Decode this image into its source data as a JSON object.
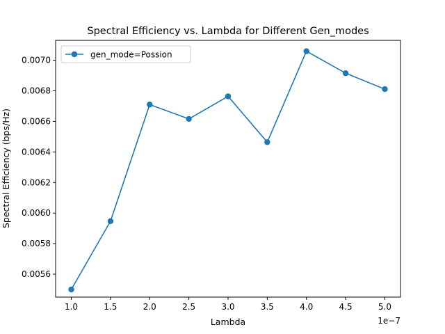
{
  "chart_data": {
    "type": "line",
    "title": "Spectral Efficiency vs. Lambda for Different Gen_modes",
    "xlabel": "Lambda",
    "ylabel": "Spectral Efficiency (bps/Hz)",
    "x_offset_text": "1e−7",
    "x_tick_labels": [
      "1.0",
      "1.5",
      "2.0",
      "2.5",
      "3.0",
      "3.5",
      "4.0",
      "4.5",
      "5.0"
    ],
    "y_tick_labels": [
      "0.0056",
      "0.0058",
      "0.0060",
      "0.0062",
      "0.0064",
      "0.0066",
      "0.0068",
      "0.0070"
    ],
    "x_tick_values": [
      1.0,
      1.5,
      2.0,
      2.5,
      3.0,
      3.5,
      4.0,
      4.5,
      5.0
    ],
    "y_tick_values": [
      0.0056,
      0.0058,
      0.006,
      0.0062,
      0.0064,
      0.0066,
      0.0068,
      0.007
    ],
    "xlim": [
      0.8,
      5.2
    ],
    "ylim": [
      0.00545,
      0.00713
    ],
    "grid": false,
    "legend_position": "top-left",
    "series": [
      {
        "name": "gen_mode=Possion",
        "color": "#1f77b4",
        "marker": "circle",
        "x": [
          1.0,
          1.5,
          2.0,
          2.5,
          3.0,
          3.5,
          4.0,
          4.5,
          5.0
        ],
        "y": [
          0.0055,
          0.005947,
          0.00671,
          0.006616,
          0.006764,
          0.006464,
          0.007059,
          0.006915,
          0.006811
        ]
      }
    ]
  }
}
